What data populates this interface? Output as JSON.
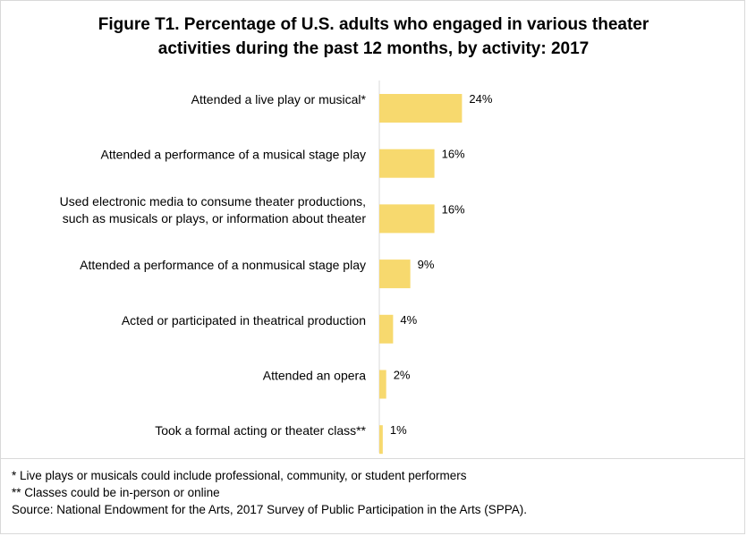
{
  "title_line1": "Figure T1. Percentage of U.S. adults who engaged in various theater",
  "title_line2": "activities during the past 12 months, by activity: 2017",
  "chart_data": {
    "type": "bar",
    "orientation": "horizontal",
    "title": "Figure T1. Percentage of U.S. adults who engaged in various theater activities during the past 12 months, by activity: 2017",
    "categories": [
      [
        "Attended a live play or musical*"
      ],
      [
        "Attended a performance of a musical stage play"
      ],
      [
        "Used electronic media to consume theater productions,",
        "such as musicals or plays, or information about theater"
      ],
      [
        "Attended a performance of a nonmusical stage play"
      ],
      [
        "Acted or participated in theatrical production"
      ],
      [
        "Attended an opera"
      ],
      [
        "Took a formal acting or theater class**"
      ]
    ],
    "values": [
      24,
      16,
      16,
      9,
      4,
      2,
      1
    ],
    "value_labels": [
      "24%",
      "16%",
      "16%",
      "9%",
      "4%",
      "2%",
      "1%"
    ],
    "unit": "%",
    "bar_color": "#f7d96e",
    "axis_color": "#d9d9d9",
    "grid": false,
    "legend": "none"
  },
  "footnotes": [
    "* Live plays or musicals could include professional, community, or student performers",
    "** Classes could be in-person or online",
    "Source: National Endowment for the Arts, 2017 Survey of Public Participation in the Arts (SPPA)."
  ]
}
